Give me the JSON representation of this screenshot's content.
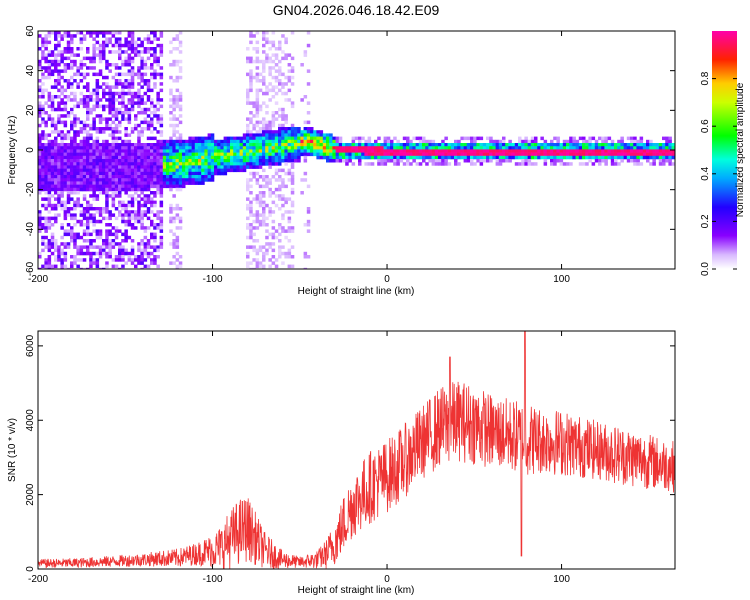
{
  "title": "GN04.2026.046.18.42.E09",
  "chart_data": [
    {
      "type": "heatmap",
      "xlabel": "Height of straight line (km)",
      "ylabel": "Frequency (Hz)",
      "xlim": [
        -200,
        165
      ],
      "ylim": [
        -60,
        60
      ],
      "xticks": [
        -200,
        -100,
        0,
        100
      ],
      "yticks": [
        -60,
        -40,
        -20,
        0,
        20,
        40,
        60
      ],
      "colorbar": {
        "label": "Normalized spectral amplitude",
        "range": [
          0.0,
          1.0
        ],
        "ticks": [
          0.0,
          0.2,
          0.4,
          0.6,
          0.8
        ],
        "tick_labels": [
          "0.0",
          "0.2",
          "0.4",
          "0.6",
          "0.8"
        ],
        "stops": [
          "#ffffff",
          "#8800ff",
          "#0000ff",
          "#00ffff",
          "#00ff00",
          "#ffff00",
          "#ff0000",
          "#ff00ff"
        ]
      },
      "ridge": {
        "description_points_x": [
          -150,
          -120,
          -100,
          -80,
          -60,
          -45,
          -30,
          0,
          50,
          100,
          165
        ],
        "description_points_freq": [
          -8,
          -6,
          -3,
          0,
          3,
          5,
          1,
          0,
          0,
          0,
          0
        ],
        "peak_amplitude_x": [
          -30,
          165
        ],
        "peak_amplitude": 1.0
      }
    },
    {
      "type": "line",
      "xlabel": "Height of straight line (km)",
      "ylabel": "SNR (10 * v/v)",
      "xlim": [
        -200,
        165
      ],
      "ylim": [
        0,
        6400
      ],
      "xticks": [
        -200,
        -100,
        0,
        100
      ],
      "yticks": [
        0,
        2000,
        4000,
        6000
      ],
      "color": "#ee3333",
      "series": [
        {
          "name": "SNR",
          "x": [
            -200,
            -180,
            -160,
            -140,
            -130,
            -120,
            -110,
            -100,
            -95,
            -90,
            -85,
            -80,
            -75,
            -70,
            -60,
            -50,
            -40,
            -35,
            -30,
            -25,
            -20,
            -10,
            0,
            10,
            20,
            30,
            40,
            50,
            60,
            70,
            80,
            90,
            100,
            110,
            120,
            130,
            140,
            150,
            160,
            165
          ],
          "values": [
            150,
            160,
            200,
            250,
            280,
            300,
            400,
            500,
            600,
            800,
            1000,
            1100,
            800,
            500,
            250,
            180,
            250,
            400,
            700,
            1200,
            1700,
            2200,
            2500,
            2900,
            3400,
            3800,
            4000,
            3900,
            3700,
            3600,
            3500,
            3450,
            3400,
            3300,
            3200,
            3100,
            3000,
            2900,
            2800,
            2750
          ],
          "envelope": {
            "x": [
              -200,
              -180,
              -160,
              -140,
              -120,
              -110,
              -100,
              -95,
              -90,
              -85,
              -80,
              -75,
              -70,
              -60,
              -50,
              -40,
              -35,
              -30,
              -25,
              -20,
              -10,
              0,
              10,
              20,
              30,
              40,
              50,
              60,
              70,
              80,
              90,
              100,
              120,
              140,
              160,
              165
            ],
            "halfwidth": [
              120,
              130,
              150,
              180,
              250,
              300,
              450,
              600,
              800,
              900,
              900,
              700,
              500,
              250,
              150,
              250,
              400,
              600,
              800,
              900,
              1000,
              1000,
              1000,
              1000,
              1100,
              1100,
              1100,
              1000,
              1000,
              1000,
              900,
              900,
              800,
              800,
              700,
              700
            ]
          },
          "spikes": [
            {
              "x": 36,
              "value": 5700
            },
            {
              "x": 79,
              "value": 6400
            },
            {
              "x": 77,
              "value": 350
            }
          ]
        }
      ]
    }
  ]
}
